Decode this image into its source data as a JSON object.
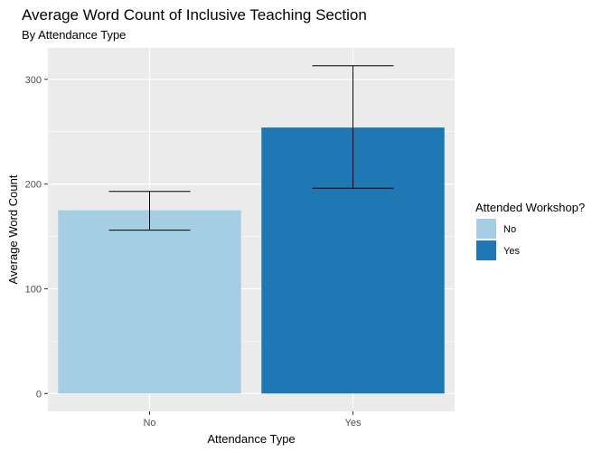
{
  "chart_data": {
    "type": "bar",
    "title": "Average Word Count of Inclusive Teaching Section",
    "subtitle": "By Attendance Type",
    "xlabel": "Attendance Type",
    "ylabel": "Average Word Count",
    "categories": [
      "No",
      "Yes"
    ],
    "values": [
      175,
      254
    ],
    "error_low": [
      156,
      196
    ],
    "error_high": [
      193,
      313
    ],
    "ylim": [
      -17,
      330
    ],
    "yticks": [
      0,
      100,
      200,
      300
    ],
    "colors": [
      "#a6cee3",
      "#1f78b4"
    ],
    "grid": true,
    "legend": {
      "title": "Attended Workshop?",
      "position": "right",
      "entries": [
        "No",
        "Yes"
      ]
    }
  }
}
